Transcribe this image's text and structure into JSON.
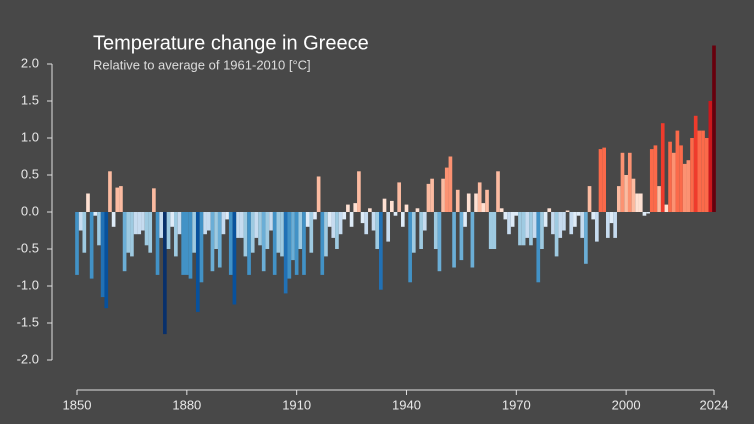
{
  "chart_data": {
    "type": "bar",
    "title": "Temperature change in Greece",
    "subtitle": "Relative to average of 1961-2010  [°C]",
    "x": [
      1850,
      1851,
      1852,
      1853,
      1854,
      1855,
      1856,
      1857,
      1858,
      1859,
      1860,
      1861,
      1862,
      1863,
      1864,
      1865,
      1866,
      1867,
      1868,
      1869,
      1870,
      1871,
      1872,
      1873,
      1874,
      1875,
      1876,
      1877,
      1878,
      1879,
      1880,
      1881,
      1882,
      1883,
      1884,
      1885,
      1886,
      1887,
      1888,
      1889,
      1890,
      1891,
      1892,
      1893,
      1894,
      1895,
      1896,
      1897,
      1898,
      1899,
      1900,
      1901,
      1902,
      1903,
      1904,
      1905,
      1906,
      1907,
      1908,
      1909,
      1910,
      1911,
      1912,
      1913,
      1914,
      1915,
      1916,
      1917,
      1918,
      1919,
      1920,
      1921,
      1922,
      1923,
      1924,
      1925,
      1926,
      1927,
      1928,
      1929,
      1930,
      1931,
      1932,
      1933,
      1934,
      1935,
      1936,
      1937,
      1938,
      1939,
      1940,
      1941,
      1942,
      1943,
      1944,
      1945,
      1946,
      1947,
      1948,
      1949,
      1950,
      1951,
      1952,
      1953,
      1954,
      1955,
      1956,
      1957,
      1958,
      1959,
      1960,
      1961,
      1962,
      1963,
      1964,
      1965,
      1966,
      1967,
      1968,
      1969,
      1970,
      1971,
      1972,
      1973,
      1974,
      1975,
      1976,
      1977,
      1978,
      1979,
      1980,
      1981,
      1982,
      1983,
      1984,
      1985,
      1986,
      1987,
      1988,
      1989,
      1990,
      1991,
      1992,
      1993,
      1994,
      1995,
      1996,
      1997,
      1998,
      1999,
      2000,
      2001,
      2002,
      2003,
      2004,
      2005,
      2006,
      2007,
      2008,
      2009,
      2010,
      2011,
      2012,
      2013,
      2014,
      2015,
      2016,
      2017,
      2018,
      2019,
      2020,
      2021,
      2022,
      2023,
      2024
    ],
    "values": [
      -0.85,
      -0.25,
      -0.55,
      0.25,
      -0.9,
      -0.05,
      -0.45,
      -1.15,
      -1.3,
      0.55,
      -0.2,
      0.33,
      0.35,
      -0.8,
      -0.55,
      -0.6,
      -0.3,
      -0.3,
      -0.25,
      -0.45,
      -0.55,
      0.32,
      -0.85,
      -0.35,
      -1.65,
      -0.5,
      -0.2,
      -0.6,
      -0.3,
      -0.85,
      -0.85,
      -0.9,
      -0.55,
      -1.35,
      -0.95,
      -0.3,
      -0.25,
      -0.8,
      -0.5,
      -0.75,
      -0.3,
      -0.1,
      -0.85,
      -1.25,
      -0.35,
      -0.35,
      -0.6,
      -0.85,
      -0.55,
      -0.35,
      -0.45,
      -0.8,
      -0.5,
      -0.25,
      -0.85,
      -0.55,
      -0.6,
      -1.1,
      -0.9,
      -0.65,
      -0.85,
      -0.5,
      -0.85,
      -0.2,
      -0.55,
      -0.1,
      0.48,
      -0.85,
      -0.6,
      -0.2,
      -0.35,
      -0.5,
      -0.3,
      -0.1,
      0.1,
      -0.2,
      0.12,
      0.55,
      -0.15,
      -0.3,
      0.05,
      -0.25,
      -0.5,
      -1.05,
      0.18,
      -0.4,
      0.15,
      -0.05,
      0.4,
      -0.2,
      0.1,
      -0.95,
      -0.55,
      0.05,
      -0.5,
      -0.25,
      0.38,
      0.45,
      -0.5,
      -0.8,
      0.45,
      0.6,
      0.75,
      -0.75,
      0.3,
      -0.65,
      -0.2,
      0.25,
      -0.75,
      0.25,
      0.4,
      0.12,
      0.3,
      -0.5,
      -0.5,
      0.55,
      0.05,
      -0.1,
      -0.3,
      -0.2,
      -0.05,
      -0.45,
      -0.45,
      -0.35,
      -0.45,
      -0.35,
      -0.95,
      -0.5,
      -0.2,
      0.05,
      -0.3,
      -0.6,
      -0.35,
      -0.25,
      0.02,
      -0.3,
      -0.2,
      -0.05,
      -0.35,
      -0.7,
      0.35,
      -0.1,
      -0.4,
      0.85,
      0.87,
      -0.35,
      -0.15,
      -0.35,
      0.35,
      0.8,
      0.5,
      0.8,
      0.45,
      0.25,
      0.25,
      -0.05,
      -0.02,
      0.85,
      0.9,
      0.35,
      1.2,
      0.1,
      0.95,
      0.8,
      1.1,
      0.9,
      0.65,
      0.7,
      1.0,
      1.3,
      1.1,
      1.1,
      1.0,
      1.5,
      2.25
    ],
    "colors_negative": [
      "#deebf7",
      "#c6dbef",
      "#9ecae1",
      "#6baed6",
      "#4292c6",
      "#2171b5",
      "#08519c",
      "#08306b"
    ],
    "colors_positive": [
      "#fee0d2",
      "#fcbba1",
      "#fc9272",
      "#fb6a4a",
      "#ef3b2c",
      "#cb181d",
      "#a50f15",
      "#67000d"
    ],
    "xlim": [
      1850,
      2024
    ],
    "xticks": [
      1850,
      1880,
      1910,
      1940,
      1970,
      2000,
      2024
    ],
    "ylim": [
      -2,
      2
    ],
    "yticks": [
      {
        "value": -2,
        "label": "-2.0"
      },
      {
        "value": -1.5,
        "label": "-1.5"
      },
      {
        "value": -1,
        "label": "-1.0"
      },
      {
        "value": -0.5,
        "label": "-0.5"
      },
      {
        "value": 0,
        "label": "0.0"
      },
      {
        "value": 0.5,
        "label": "0.5"
      },
      {
        "value": 1,
        "label": "1.0"
      },
      {
        "value": 1.5,
        "label": "1.5"
      },
      {
        "value": 2,
        "label": "2.0"
      }
    ]
  }
}
